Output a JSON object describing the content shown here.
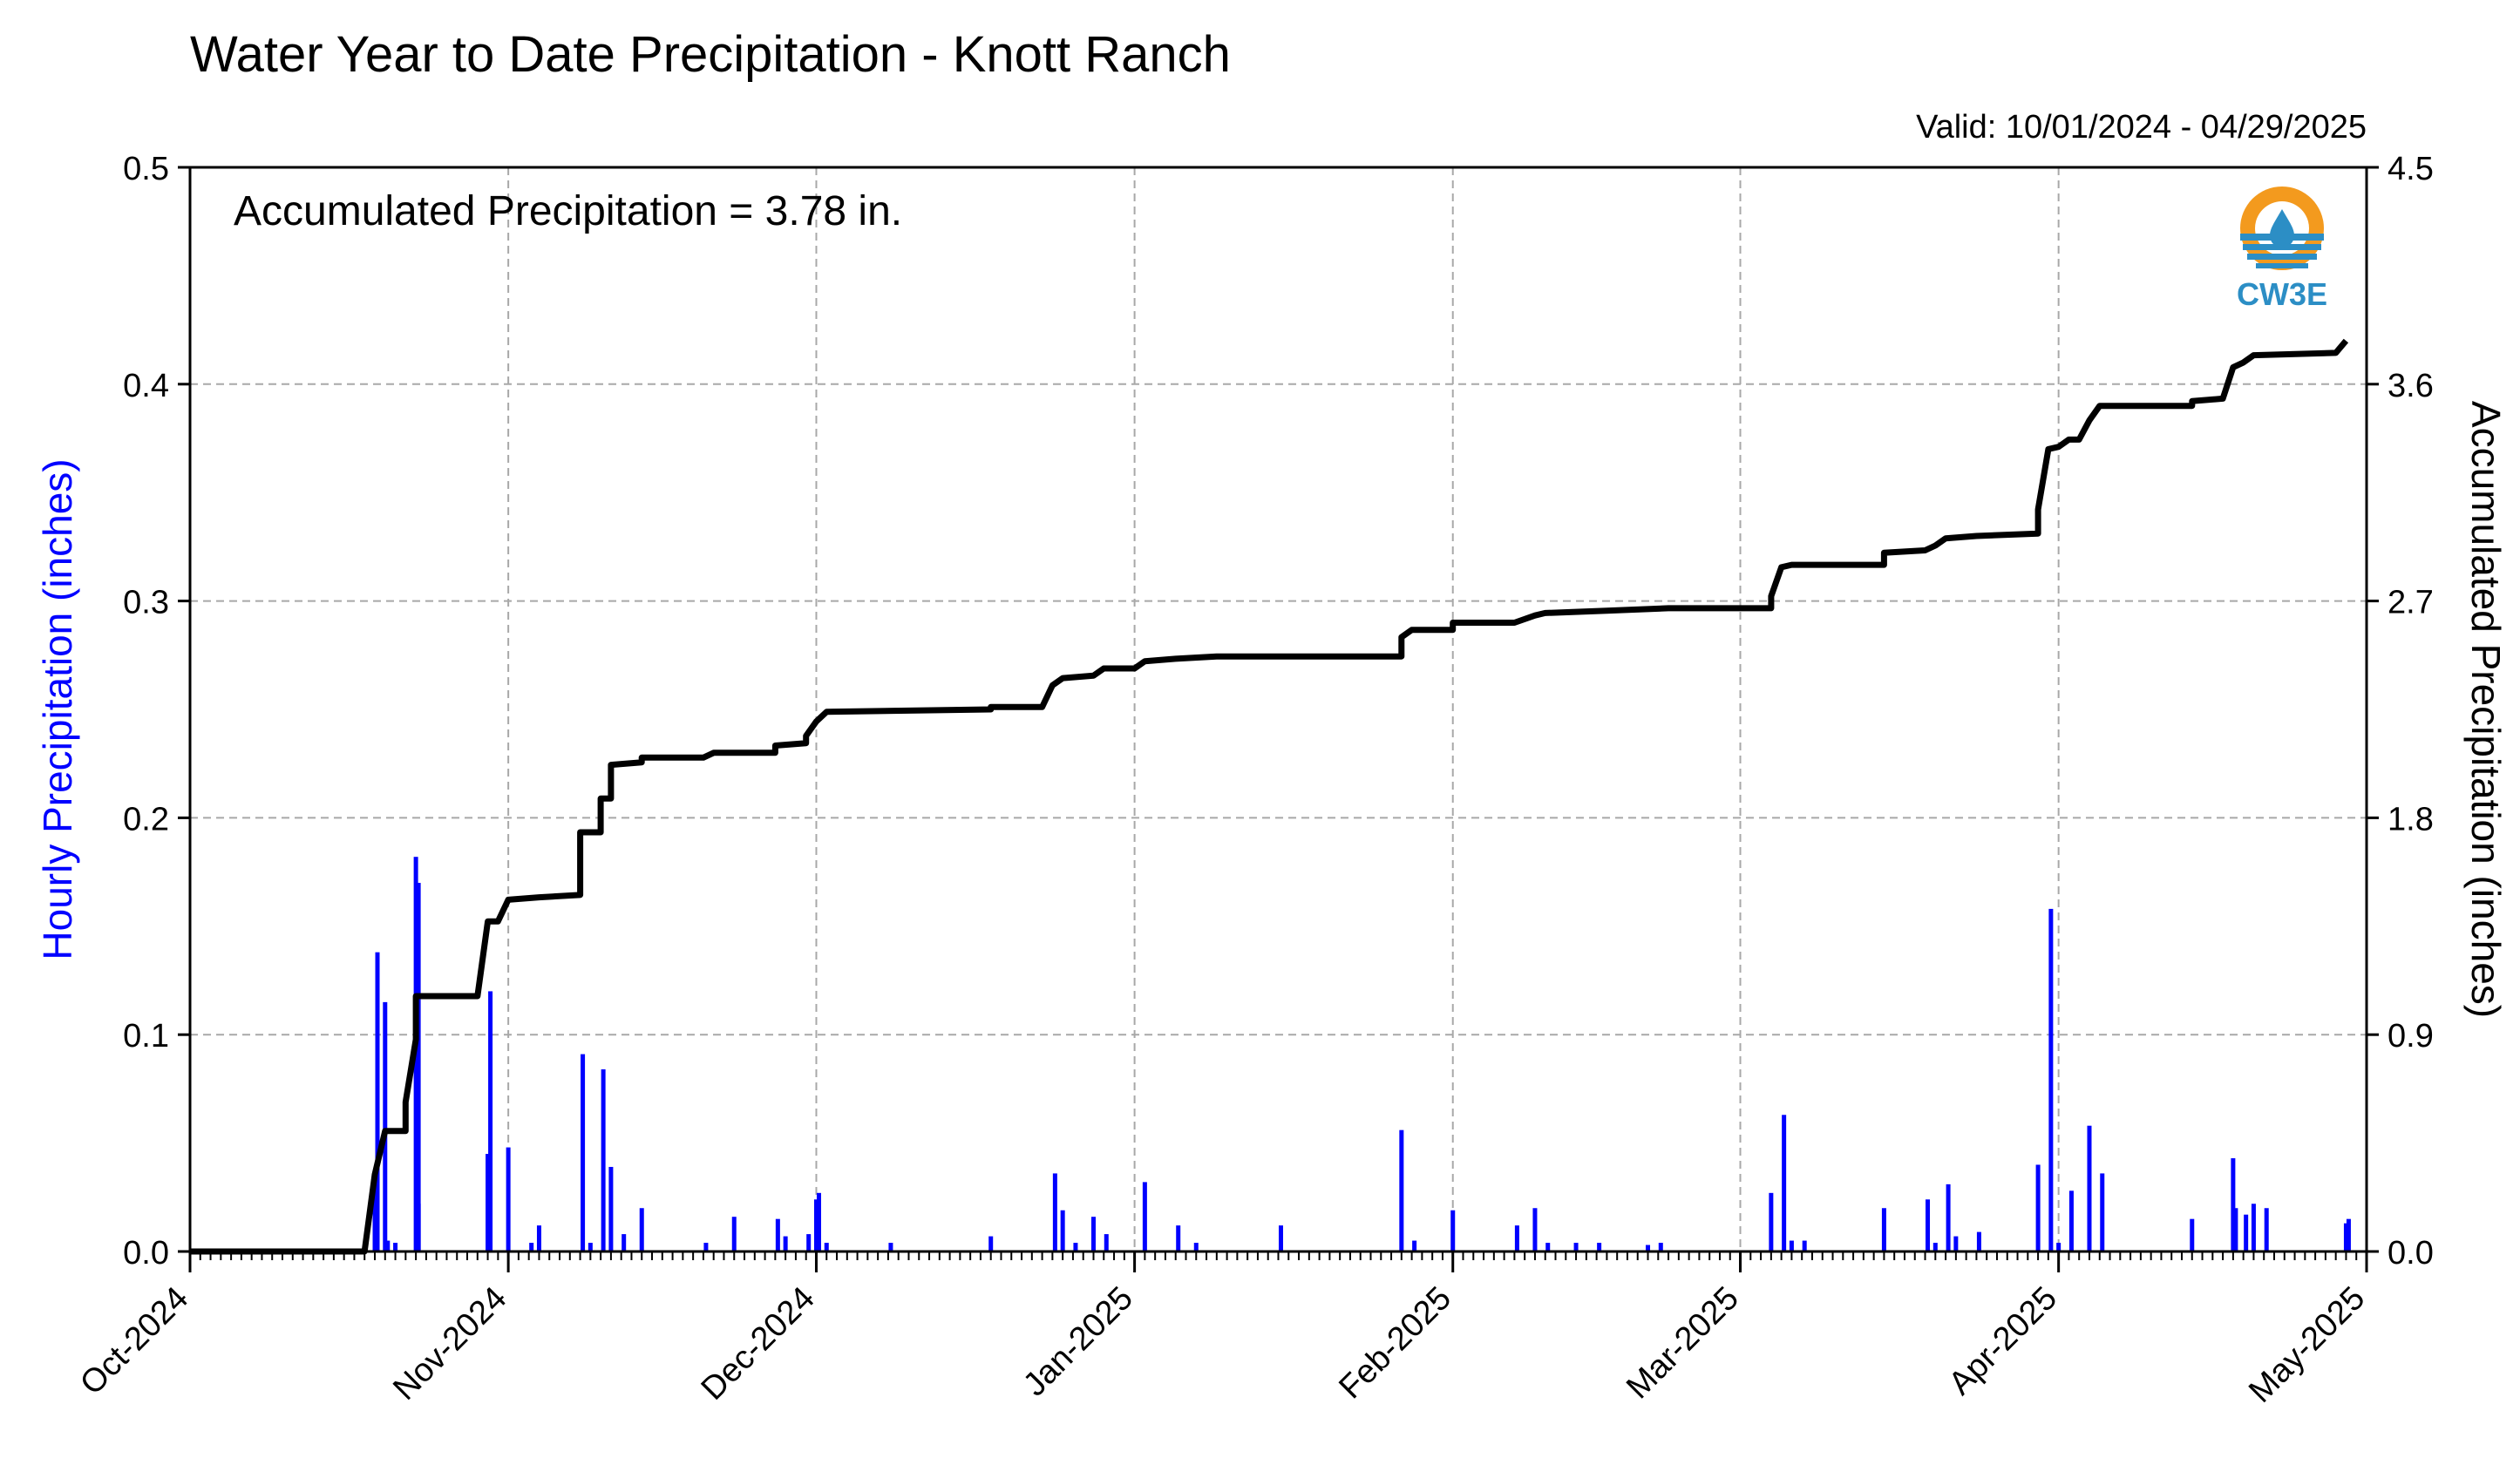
{
  "chart_data": {
    "type": "bar+line",
    "title": "Water Year to Date Precipitation - Knott Ranch",
    "subtitle": "Valid: 10/01/2024 - 04/29/2025",
    "annotation": "Accumulated Precipitation = 3.78 in.",
    "left_ylabel": "Hourly Precipitation (inches)",
    "right_ylabel": "Accumulated Precipitation (inches)",
    "left_ylim": [
      0,
      0.5
    ],
    "right_ylim": [
      0,
      4.5
    ],
    "left_ticks": [
      "0.0",
      "0.1",
      "0.2",
      "0.3",
      "0.4",
      "0.5"
    ],
    "right_ticks": [
      "0.0",
      "0.9",
      "1.8",
      "2.7",
      "3.6",
      "4.5"
    ],
    "x_range": [
      "2024-10-01",
      "2025-05-01"
    ],
    "x_ticks": [
      "Oct-2024",
      "Nov-2024",
      "Dec-2024",
      "Jan-2025",
      "Feb-2025",
      "Mar-2025",
      "Apr-2025",
      "May-2025"
    ],
    "grid": true,
    "colors": {
      "hourly": "#0000ff",
      "accumulated": "#000000",
      "grid": "#a8a8a8"
    },
    "hourly_series": {
      "name": "Hourly Precipitation",
      "points": [
        [
          "2024-10-19",
          0.032
        ],
        [
          "2024-10-19",
          0.138
        ],
        [
          "2024-10-20",
          0.115
        ],
        [
          "2024-10-20",
          0.005
        ],
        [
          "2024-10-21",
          0.004
        ],
        [
          "2024-10-23",
          0.17
        ],
        [
          "2024-10-23",
          0.182
        ],
        [
          "2024-10-23",
          0.022
        ],
        [
          "2024-10-30",
          0.045
        ],
        [
          "2024-10-30",
          0.12
        ],
        [
          "2024-11-01",
          0.048
        ],
        [
          "2024-11-03",
          0.004
        ],
        [
          "2024-11-04",
          0.012
        ],
        [
          "2024-11-08",
          0.091
        ],
        [
          "2024-11-09",
          0.004
        ],
        [
          "2024-11-10",
          0.084
        ],
        [
          "2024-11-11",
          0.039
        ],
        [
          "2024-11-12",
          0.008
        ],
        [
          "2024-11-14",
          0.02
        ],
        [
          "2024-11-20",
          0.004
        ],
        [
          "2024-11-23",
          0.016
        ],
        [
          "2024-11-27",
          0.015
        ],
        [
          "2024-11-28",
          0.007
        ],
        [
          "2024-11-30",
          0.008
        ],
        [
          "2024-12-01",
          0.024
        ],
        [
          "2024-12-01",
          0.027
        ],
        [
          "2024-12-02",
          0.004
        ],
        [
          "2024-12-08",
          0.004
        ],
        [
          "2024-12-18",
          0.007
        ],
        [
          "2024-12-24",
          0.036
        ],
        [
          "2024-12-25",
          0.019
        ],
        [
          "2024-12-26",
          0.004
        ],
        [
          "2024-12-28",
          0.016
        ],
        [
          "2024-12-29",
          0.008
        ],
        [
          "2025-01-02",
          0.032
        ],
        [
          "2025-01-05",
          0.012
        ],
        [
          "2025-01-07",
          0.004
        ],
        [
          "2025-01-15",
          0.012
        ],
        [
          "2025-01-27",
          0.056
        ],
        [
          "2025-01-28",
          0.005
        ],
        [
          "2025-02-01",
          0.019
        ],
        [
          "2025-02-07",
          0.012
        ],
        [
          "2025-02-09",
          0.02
        ],
        [
          "2025-02-10",
          0.004
        ],
        [
          "2025-02-13",
          0.004
        ],
        [
          "2025-02-15",
          0.004
        ],
        [
          "2025-02-20",
          0.003
        ],
        [
          "2025-02-21",
          0.004
        ],
        [
          "2025-03-04",
          0.027
        ],
        [
          "2025-03-05",
          0.063
        ],
        [
          "2025-03-06",
          0.005
        ],
        [
          "2025-03-07",
          0.005
        ],
        [
          "2025-03-15",
          0.02
        ],
        [
          "2025-03-19",
          0.024
        ],
        [
          "2025-03-20",
          0.004
        ],
        [
          "2025-03-21",
          0.031
        ],
        [
          "2025-03-22",
          0.007
        ],
        [
          "2025-03-24",
          0.009
        ],
        [
          "2025-03-30",
          0.04
        ],
        [
          "2025-03-31",
          0.158
        ],
        [
          "2025-04-01",
          0.004
        ],
        [
          "2025-04-02",
          0.028
        ],
        [
          "2025-04-04",
          0.058
        ],
        [
          "2025-04-05",
          0.036
        ],
        [
          "2025-04-14",
          0.015
        ],
        [
          "2025-04-18",
          0.02
        ],
        [
          "2025-04-18",
          0.043
        ],
        [
          "2025-04-19",
          0.017
        ],
        [
          "2025-04-20",
          0.022
        ],
        [
          "2025-04-21",
          0.02
        ],
        [
          "2025-04-29",
          0.013
        ],
        [
          "2025-04-29",
          0.015
        ]
      ]
    },
    "accumulated_series": {
      "name": "Accumulated Precipitation",
      "points": [
        [
          "2024-10-01",
          0.0
        ],
        [
          "2024-10-18",
          0.0
        ],
        [
          "2024-10-19",
          0.32
        ],
        [
          "2024-10-20",
          0.5
        ],
        [
          "2024-10-22",
          0.5
        ],
        [
          "2024-10-22",
          0.62
        ],
        [
          "2024-10-23",
          0.88
        ],
        [
          "2024-10-23",
          1.06
        ],
        [
          "2024-10-29",
          1.06
        ],
        [
          "2024-10-30",
          1.37
        ],
        [
          "2024-10-31",
          1.37
        ],
        [
          "2024-11-01",
          1.46
        ],
        [
          "2024-11-04",
          1.47
        ],
        [
          "2024-11-08",
          1.48
        ],
        [
          "2024-11-08",
          1.74
        ],
        [
          "2024-11-10",
          1.74
        ],
        [
          "2024-11-10",
          1.88
        ],
        [
          "2024-11-11",
          1.88
        ],
        [
          "2024-11-11",
          2.02
        ],
        [
          "2024-11-14",
          2.03
        ],
        [
          "2024-11-14",
          2.05
        ],
        [
          "2024-11-20",
          2.05
        ],
        [
          "2024-11-21",
          2.07
        ],
        [
          "2024-11-27",
          2.07
        ],
        [
          "2024-11-27",
          2.1
        ],
        [
          "2024-11-30",
          2.11
        ],
        [
          "2024-11-30",
          2.14
        ],
        [
          "2024-12-01",
          2.2
        ],
        [
          "2024-12-02",
          2.24
        ],
        [
          "2024-12-18",
          2.25
        ],
        [
          "2024-12-18",
          2.26
        ],
        [
          "2024-12-23",
          2.26
        ],
        [
          "2024-12-24",
          2.35
        ],
        [
          "2024-12-25",
          2.38
        ],
        [
          "2024-12-28",
          2.39
        ],
        [
          "2024-12-29",
          2.42
        ],
        [
          "2025-01-01",
          2.42
        ],
        [
          "2025-01-02",
          2.45
        ],
        [
          "2025-01-05",
          2.46
        ],
        [
          "2025-01-09",
          2.47
        ],
        [
          "2025-01-27",
          2.47
        ],
        [
          "2025-01-27",
          2.55
        ],
        [
          "2025-01-28",
          2.58
        ],
        [
          "2025-02-01",
          2.58
        ],
        [
          "2025-02-01",
          2.61
        ],
        [
          "2025-02-07",
          2.61
        ],
        [
          "2025-02-09",
          2.64
        ],
        [
          "2025-02-10",
          2.65
        ],
        [
          "2025-02-16",
          2.66
        ],
        [
          "2025-02-22",
          2.67
        ],
        [
          "2025-03-04",
          2.67
        ],
        [
          "2025-03-04",
          2.72
        ],
        [
          "2025-03-05",
          2.84
        ],
        [
          "2025-03-06",
          2.85
        ],
        [
          "2025-03-15",
          2.85
        ],
        [
          "2025-03-15",
          2.9
        ],
        [
          "2025-03-19",
          2.91
        ],
        [
          "2025-03-20",
          2.93
        ],
        [
          "2025-03-21",
          2.96
        ],
        [
          "2025-03-24",
          2.97
        ],
        [
          "2025-03-30",
          2.98
        ],
        [
          "2025-03-30",
          3.08
        ],
        [
          "2025-03-31",
          3.33
        ],
        [
          "2025-04-01",
          3.34
        ],
        [
          "2025-04-02",
          3.37
        ],
        [
          "2025-04-03",
          3.37
        ],
        [
          "2025-04-04",
          3.45
        ],
        [
          "2025-04-05",
          3.51
        ],
        [
          "2025-04-14",
          3.51
        ],
        [
          "2025-04-14",
          3.53
        ],
        [
          "2025-04-17",
          3.54
        ],
        [
          "2025-04-18",
          3.67
        ],
        [
          "2025-04-19",
          3.69
        ],
        [
          "2025-04-20",
          3.72
        ],
        [
          "2025-04-28",
          3.73
        ],
        [
          "2025-04-29",
          3.78
        ]
      ]
    }
  },
  "logo": {
    "text": "CW3E",
    "colors": {
      "orange": "#f39a1e",
      "blue": "#2c8ec5"
    }
  }
}
